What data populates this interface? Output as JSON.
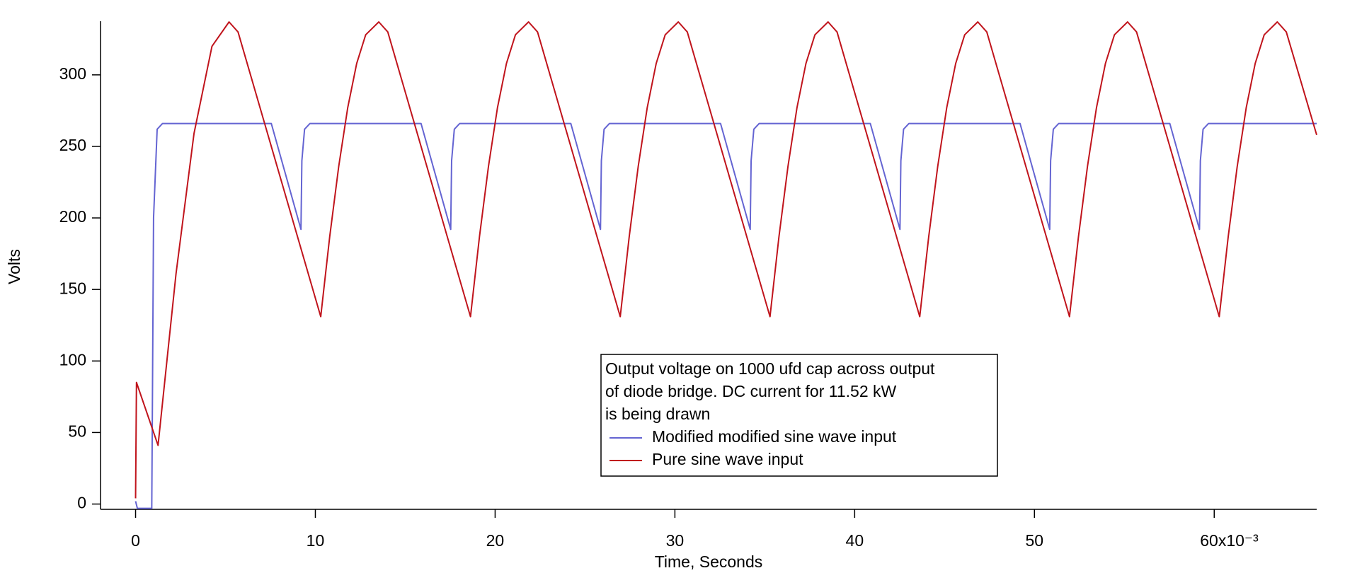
{
  "chart_data": {
    "type": "line",
    "xlabel": "Time, Seconds",
    "ylabel": "Volts",
    "annotation": [
      "Output voltage on 1000 ufd cap across output",
      "of diode bridge. DC current for 11.52 kW",
      "is being drawn"
    ],
    "xlim": [
      -1.95,
      65.7
    ],
    "ylim": [
      -3.7,
      337.5
    ],
    "xticks": [
      0,
      10,
      20,
      30,
      40,
      50,
      {
        "value": 60,
        "label": "60x10⁻³"
      }
    ],
    "yticks": [
      0,
      50,
      100,
      150,
      200,
      250,
      300
    ],
    "grid": false,
    "legend": "bottom-center",
    "series": [
      {
        "name": "Modified modified sine wave input",
        "color": "#6464d2",
        "x": [
          0,
          0.1,
          0.9,
          1.0,
          1.2,
          1.5,
          7.55,
          9.2,
          9.25,
          9.4,
          9.7,
          15.88,
          17.53,
          17.58,
          17.73,
          18.03,
          24.21,
          25.86,
          25.91,
          26.06,
          26.36,
          32.54,
          34.19,
          34.24,
          34.39,
          34.69,
          40.87,
          42.52,
          42.57,
          42.72,
          43.02,
          49.2,
          50.85,
          50.9,
          51.05,
          51.35,
          57.53,
          59.18,
          59.23,
          59.38,
          59.68,
          65.7
        ],
        "values": [
          2,
          -3,
          -3,
          200,
          262,
          266,
          266,
          192,
          240,
          262,
          266,
          266,
          192,
          240,
          262,
          266,
          266,
          192,
          240,
          262,
          266,
          266,
          192,
          240,
          262,
          266,
          266,
          192,
          240,
          262,
          266,
          266,
          192,
          240,
          262,
          266,
          266,
          192,
          240,
          262,
          266,
          266
        ]
      },
      {
        "name": "Pure sine wave input",
        "color": "#c0141c",
        "x": [
          0,
          0.05,
          1.25,
          2.25,
          3.25,
          4.25,
          5.2,
          5.7,
          10.3,
          10.8,
          11.3,
          11.8,
          12.3,
          12.8,
          13.53,
          14.03,
          18.63,
          19.13,
          19.63,
          20.13,
          20.63,
          21.13,
          21.86,
          22.36,
          26.96,
          27.46,
          27.96,
          28.46,
          28.96,
          29.46,
          30.19,
          30.69,
          35.29,
          35.79,
          36.29,
          36.79,
          37.29,
          37.79,
          38.52,
          39.02,
          43.62,
          44.12,
          44.62,
          45.12,
          45.62,
          46.12,
          46.85,
          47.35,
          51.95,
          52.45,
          52.95,
          53.45,
          53.95,
          54.45,
          55.18,
          55.68,
          60.28,
          60.78,
          61.28,
          61.78,
          62.28,
          62.78,
          63.51,
          64.01,
          65.7
        ],
        "values": [
          4,
          85,
          41,
          161,
          259,
          320,
          337,
          330,
          131,
          187,
          236,
          277,
          308,
          328,
          337,
          330,
          131,
          187,
          236,
          277,
          308,
          328,
          337,
          330,
          131,
          187,
          236,
          277,
          308,
          328,
          337,
          330,
          131,
          187,
          236,
          277,
          308,
          328,
          337,
          330,
          131,
          187,
          236,
          277,
          308,
          328,
          337,
          330,
          131,
          187,
          236,
          277,
          308,
          328,
          337,
          330,
          131,
          187,
          236,
          277,
          308,
          328,
          337,
          330,
          258
        ]
      }
    ]
  }
}
